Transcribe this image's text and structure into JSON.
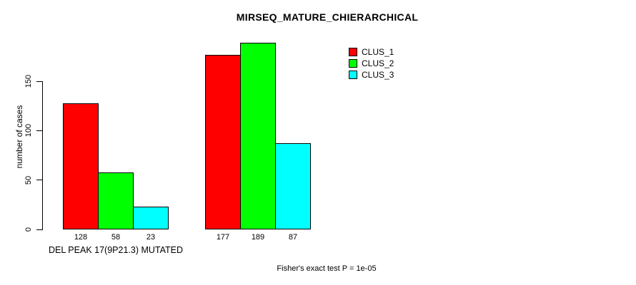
{
  "title": "MIRSEQ_MATURE_CHIERARCHICAL",
  "chart_data": {
    "type": "bar",
    "grouped": true,
    "title": "MIRSEQ_MATURE_CHIERARCHICAL",
    "categories": [
      "DEL PEAK 17(9P21.3) MUTATED",
      ""
    ],
    "series": [
      {
        "name": "CLUS_1",
        "color": "#ff0000",
        "values": [
          128,
          177
        ]
      },
      {
        "name": "CLUS_2",
        "color": "#00ff00",
        "values": [
          58,
          189
        ]
      },
      {
        "name": "CLUS_3",
        "color": "#00ffff",
        "values": [
          23,
          87
        ]
      }
    ],
    "bar_value_labels": [
      [
        128,
        58,
        23
      ],
      [
        177,
        189,
        87
      ]
    ],
    "xlabel": "",
    "ylabel": "number of cases",
    "yticks": [
      0,
      50,
      100,
      150
    ],
    "ylim": [
      0,
      193
    ],
    "grid": false,
    "legend_position": "top-right",
    "annotation": "Fisher's exact test P = 1e-05"
  },
  "colors": {
    "background": "#ffffff",
    "axis": "#000000",
    "clus_1": "#ff0000",
    "clus_2": "#00ff00",
    "clus_3": "#00ffff"
  }
}
